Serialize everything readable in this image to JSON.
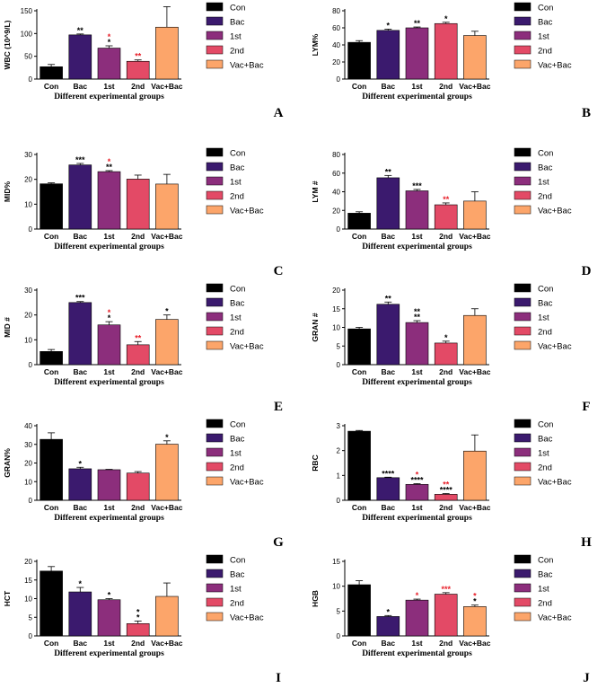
{
  "colors": {
    "Con": "#000000",
    "Bac": "#3b1a6e",
    "1st": "#8c2e7c",
    "2nd": "#e34a66",
    "Vac+Bac": "#fca56a",
    "star_black": "#000000",
    "star_red": "#e8212b"
  },
  "chart_data": [
    {
      "type": "bar",
      "panel": "A",
      "ylabel": "WBC (10^9/L)",
      "xlabel": "Different experimental groups",
      "categories": [
        "Con",
        "Bac",
        "1st",
        "2nd",
        "Vac+Bac"
      ],
      "legend": [
        "Con",
        "Bac",
        "1st",
        "2nd",
        "Vac+Bac"
      ],
      "values": [
        27,
        97,
        68,
        39,
        114
      ],
      "errors": [
        5,
        2,
        5,
        3,
        45
      ],
      "ylim": [
        0,
        150
      ],
      "yticks": [
        0,
        50,
        100,
        150
      ],
      "ytick_labels": [
        "0",
        "50",
        "100",
        "150"
      ],
      "significance": [
        [],
        [
          {
            "text": "**",
            "color": "black"
          }
        ],
        [
          {
            "text": "*",
            "color": "black"
          },
          {
            "text": "*",
            "color": "red"
          }
        ],
        [
          {
            "text": "**",
            "color": "red"
          }
        ],
        []
      ]
    },
    {
      "type": "bar",
      "panel": "B",
      "ylabel": "LYM%",
      "xlabel": "Different experimental groups",
      "categories": [
        "Con",
        "Bac",
        "1st",
        "2nd",
        "Vac+Bac"
      ],
      "legend": [
        "Con",
        "Bac",
        "1st",
        "2nd",
        "Vac+Bac"
      ],
      "values": [
        43,
        57,
        60,
        65,
        51
      ],
      "errors": [
        2,
        1.5,
        1,
        1.5,
        5
      ],
      "ylim": [
        0,
        80
      ],
      "yticks": [
        0,
        20,
        40,
        60,
        80
      ],
      "ytick_labels": [
        "0",
        "20",
        "40",
        "60",
        "80"
      ],
      "significance": [
        [],
        [
          {
            "text": "*",
            "color": "black"
          }
        ],
        [
          {
            "text": "**",
            "color": "black"
          }
        ],
        [
          {
            "text": "*",
            "color": "black"
          }
        ],
        []
      ]
    },
    {
      "type": "bar",
      "panel": "C",
      "ylabel": "MID%",
      "xlabel": "Different experimental groups",
      "categories": [
        "Con",
        "Bac",
        "1st",
        "2nd",
        "Vac+Bac"
      ],
      "legend": [
        "Con",
        "Bac",
        "1st",
        "2nd",
        "Vac+Bac"
      ],
      "values": [
        18.2,
        25.8,
        23.1,
        20.1,
        18.1
      ],
      "errors": [
        0.4,
        0.6,
        0.4,
        1.6,
        3.9
      ],
      "ylim": [
        0,
        30
      ],
      "yticks": [
        0,
        10,
        20,
        30
      ],
      "ytick_labels": [
        "0",
        "10",
        "20",
        "30"
      ],
      "significance": [
        [],
        [
          {
            "text": "***",
            "color": "black"
          }
        ],
        [
          {
            "text": "**",
            "color": "black"
          },
          {
            "text": "*",
            "color": "red"
          }
        ],
        [],
        []
      ]
    },
    {
      "type": "bar",
      "panel": "D",
      "ylabel": "LYM #",
      "xlabel": "Different experimental groups",
      "categories": [
        "Con",
        "Bac",
        "1st",
        "2nd",
        "Vac+Bac"
      ],
      "legend": [
        "Con",
        "Bac",
        "1st",
        "2nd",
        "Vac+Bac"
      ],
      "values": [
        17,
        55,
        41,
        26,
        30
      ],
      "errors": [
        1.5,
        2.5,
        1.5,
        2,
        10
      ],
      "ylim": [
        0,
        80
      ],
      "yticks": [
        0,
        20,
        40,
        60,
        80
      ],
      "ytick_labels": [
        "0",
        "20",
        "40",
        "60",
        "80"
      ],
      "significance": [
        [],
        [
          {
            "text": "**",
            "color": "black"
          }
        ],
        [
          {
            "text": "***",
            "color": "black"
          }
        ],
        [
          {
            "text": "**",
            "color": "red"
          }
        ],
        []
      ]
    },
    {
      "type": "bar",
      "panel": "E",
      "ylabel": "MID #",
      "xlabel": "Different experimental groups",
      "categories": [
        "Con",
        "Bac",
        "1st",
        "2nd",
        "Vac+Bac"
      ],
      "legend": [
        "Con",
        "Bac",
        "1st",
        "2nd",
        "Vac+Bac"
      ],
      "values": [
        5.3,
        25,
        16,
        8,
        18.2
      ],
      "errors": [
        0.8,
        0.4,
        1.3,
        1.3,
        1.8
      ],
      "ylim": [
        0,
        30
      ],
      "yticks": [
        0,
        10,
        20,
        30
      ],
      "ytick_labels": [
        "0",
        "10",
        "20",
        "30"
      ],
      "significance": [
        [],
        [
          {
            "text": "***",
            "color": "black"
          }
        ],
        [
          {
            "text": "*",
            "color": "black"
          },
          {
            "text": "*",
            "color": "red"
          }
        ],
        [
          {
            "text": "**",
            "color": "red"
          }
        ],
        [
          {
            "text": "*",
            "color": "black"
          }
        ]
      ]
    },
    {
      "type": "bar",
      "panel": "F",
      "ylabel": "GRAN #",
      "xlabel": "Different experimental groups",
      "categories": [
        "Con",
        "Bac",
        "1st",
        "2nd",
        "Vac+Bac"
      ],
      "legend": [
        "Con",
        "Bac",
        "1st",
        "2nd",
        "Vac+Bac"
      ],
      "values": [
        9.6,
        16.2,
        11.3,
        5.8,
        13.2
      ],
      "errors": [
        0.4,
        0.6,
        0.5,
        0.5,
        1.8
      ],
      "ylim": [
        0,
        20
      ],
      "yticks": [
        0,
        5,
        10,
        15,
        20
      ],
      "ytick_labels": [
        "0",
        "5",
        "10",
        "15",
        "20"
      ],
      "significance": [
        [],
        [
          {
            "text": "**",
            "color": "black"
          }
        ],
        [
          {
            "text": "**",
            "color": "black"
          },
          {
            "text": "**",
            "color": "black"
          }
        ],
        [
          {
            "text": "*",
            "color": "black"
          }
        ],
        []
      ]
    },
    {
      "type": "bar",
      "panel": "G",
      "ylabel": "GRAN%",
      "xlabel": "Different experimental groups",
      "categories": [
        "Con",
        "Bac",
        "1st",
        "2nd",
        "Vac+Bac"
      ],
      "legend": [
        "Con",
        "Bac",
        "1st",
        "2nd",
        "Vac+Bac"
      ],
      "values": [
        32.7,
        16.9,
        16.4,
        14.6,
        30.1
      ],
      "errors": [
        3.5,
        0.8,
        0.2,
        0.8,
        1.8
      ],
      "ylim": [
        0,
        40
      ],
      "yticks": [
        0,
        10,
        20,
        30,
        40
      ],
      "ytick_labels": [
        "0",
        "10",
        "20",
        "30",
        "40"
      ],
      "significance": [
        [],
        [
          {
            "text": "*",
            "color": "black"
          }
        ],
        [],
        [],
        [
          {
            "text": "*",
            "color": "black"
          }
        ]
      ]
    },
    {
      "type": "bar",
      "panel": "H",
      "ylabel": "RBC",
      "xlabel": "Different experimental groups",
      "categories": [
        "Con",
        "Bac",
        "1st",
        "2nd",
        "Vac+Bac"
      ],
      "legend": [
        "Con",
        "Bac",
        "1st",
        "2nd",
        "Vac+Bac"
      ],
      "values": [
        2.78,
        0.91,
        0.64,
        0.24,
        1.98
      ],
      "errors": [
        0.03,
        0.02,
        0.03,
        0.03,
        0.65
      ],
      "ylim": [
        0,
        3
      ],
      "yticks": [
        0,
        1,
        2,
        3
      ],
      "ytick_labels": [
        "0",
        "1",
        "2",
        "3"
      ],
      "significance": [
        [],
        [
          {
            "text": "****",
            "color": "black"
          }
        ],
        [
          {
            "text": "****",
            "color": "black"
          },
          {
            "text": "*",
            "color": "red"
          }
        ],
        [
          {
            "text": "****",
            "color": "black"
          },
          {
            "text": "**",
            "color": "red"
          }
        ],
        []
      ]
    },
    {
      "type": "bar",
      "panel": "I",
      "ylabel": "HCT",
      "xlabel": "Different experimental groups",
      "categories": [
        "Con",
        "Bac",
        "1st",
        "2nd",
        "Vac+Bac"
      ],
      "legend": [
        "Con",
        "Bac",
        "1st",
        "2nd",
        "Vac+Bac"
      ],
      "values": [
        17.4,
        11.8,
        9.7,
        3.3,
        10.6
      ],
      "errors": [
        1.2,
        1.2,
        0.3,
        0.7,
        3.6
      ],
      "ylim": [
        0,
        20
      ],
      "yticks": [
        0,
        5,
        10,
        15,
        20
      ],
      "ytick_labels": [
        "0",
        "5",
        "10",
        "15",
        "20"
      ],
      "significance": [
        [],
        [
          {
            "text": "*",
            "color": "black"
          }
        ],
        [
          {
            "text": "*",
            "color": "black"
          }
        ],
        [
          {
            "text": "*",
            "color": "black"
          },
          {
            "text": "*",
            "color": "black"
          }
        ],
        []
      ]
    },
    {
      "type": "bar",
      "panel": "J",
      "ylabel": "HGB",
      "xlabel": "Different experimental groups",
      "categories": [
        "Con",
        "Bac",
        "1st",
        "2nd",
        "Vac+Bac"
      ],
      "legend": [
        "Con",
        "Bac",
        "1st",
        "2nd",
        "Vac+Bac"
      ],
      "values": [
        10.3,
        3.9,
        7.2,
        8.4,
        5.9
      ],
      "errors": [
        0.8,
        0.2,
        0.2,
        0.3,
        0.3
      ],
      "ylim": [
        0,
        15
      ],
      "yticks": [
        0,
        5,
        10,
        15
      ],
      "ytick_labels": [
        "0",
        "5",
        "10",
        "15"
      ],
      "significance": [
        [],
        [
          {
            "text": "*",
            "color": "black"
          }
        ],
        [
          {
            "text": "*",
            "color": "red"
          }
        ],
        [
          {
            "text": "***",
            "color": "red"
          }
        ],
        [
          {
            "text": "*",
            "color": "black"
          },
          {
            "text": "*",
            "color": "red"
          }
        ]
      ]
    }
  ]
}
